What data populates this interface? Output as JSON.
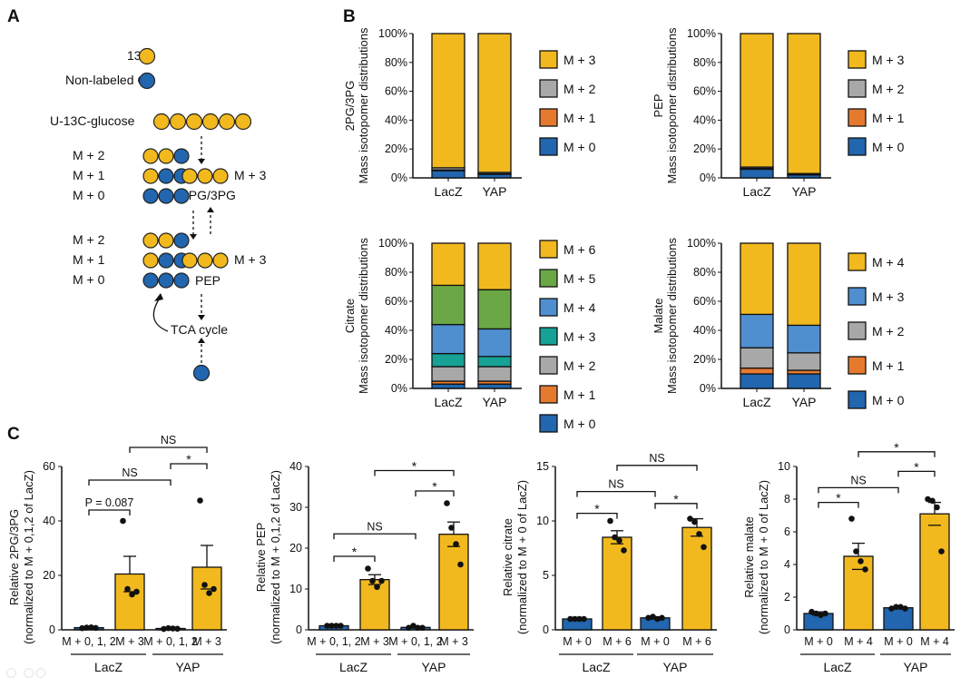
{
  "panels": {
    "a": "A",
    "b": "B",
    "c": "C"
  },
  "diagram": {
    "legend_13c": "13C",
    "legend_nonlabeled": "Non-labeled C",
    "glucose": "U-13C-glucose",
    "m2": "M + 2",
    "m1": "M + 1",
    "m0": "M + 0",
    "m3": "M + 3",
    "pg": "2PG/3PG",
    "pep": "PEP",
    "tca": "TCA cycle"
  },
  "colors": {
    "labeled": "#F2B91E",
    "unlabeled": "#2166AE",
    "M+0": "#2166AE",
    "M+1": "#E57A2F",
    "M+2": "#A8A8A8",
    "M+3": "#16A294",
    "M+4": "#4F8FD0",
    "M+5": "#6BA845",
    "M+6": "#F2B91E"
  },
  "chart_data": [
    {
      "type": "bar",
      "stacked": true,
      "title": "2PG/3PG",
      "ylabel": "Mass isotopomer distributions",
      "ylim": [
        0,
        100
      ],
      "yticks": [
        "0%",
        "20%",
        "40%",
        "60%",
        "80%",
        "100%"
      ],
      "categories": [
        "LacZ",
        "YAP"
      ],
      "series": [
        {
          "name": "M + 0",
          "key": "M+0",
          "values": [
            5,
            2.5
          ]
        },
        {
          "name": "M + 1",
          "key": "M+1",
          "values": [
            0.5,
            0.3
          ]
        },
        {
          "name": "M + 2",
          "key": "M+2",
          "values": [
            1.5,
            1
          ]
        },
        {
          "name": "M + 3",
          "key": "M+6",
          "values": [
            93,
            96.2
          ]
        }
      ]
    },
    {
      "type": "bar",
      "stacked": true,
      "title": "PEP",
      "ylabel": "Mass isotopomer distributions",
      "ylim": [
        0,
        100
      ],
      "yticks": [
        "0%",
        "20%",
        "40%",
        "60%",
        "80%",
        "100%"
      ],
      "categories": [
        "LacZ",
        "YAP"
      ],
      "series": [
        {
          "name": "M + 0",
          "key": "M+0",
          "values": [
            6,
            2
          ]
        },
        {
          "name": "M + 1",
          "key": "M+1",
          "values": [
            0.5,
            0.3
          ]
        },
        {
          "name": "M + 2",
          "key": "M+2",
          "values": [
            1,
            0.7
          ]
        },
        {
          "name": "M + 3",
          "key": "M+6",
          "values": [
            92.5,
            97
          ]
        }
      ]
    },
    {
      "type": "bar",
      "stacked": true,
      "title": "Citrate",
      "ylabel": "Mass isotopomer distributions",
      "ylim": [
        0,
        100
      ],
      "yticks": [
        "0%",
        "20%",
        "40%",
        "60%",
        "80%",
        "100%"
      ],
      "categories": [
        "LacZ",
        "YAP"
      ],
      "series": [
        {
          "name": "M + 0",
          "key": "M+0",
          "values": [
            3,
            3
          ]
        },
        {
          "name": "M + 1",
          "key": "M+1",
          "values": [
            2,
            2
          ]
        },
        {
          "name": "M + 2",
          "key": "M+2",
          "values": [
            10,
            10
          ]
        },
        {
          "name": "M + 3",
          "key": "M+3",
          "values": [
            9,
            7
          ]
        },
        {
          "name": "M + 4",
          "key": "M+4",
          "values": [
            20,
            19
          ]
        },
        {
          "name": "M + 5",
          "key": "M+5",
          "values": [
            27,
            27
          ]
        },
        {
          "name": "M + 6",
          "key": "M+6",
          "values": [
            29,
            32
          ]
        }
      ]
    },
    {
      "type": "bar",
      "stacked": true,
      "title": "Malate",
      "ylabel": "Mass isotopomer distributions",
      "ylim": [
        0,
        100
      ],
      "yticks": [
        "0%",
        "20%",
        "40%",
        "60%",
        "80%",
        "100%"
      ],
      "categories": [
        "LacZ",
        "YAP"
      ],
      "series": [
        {
          "name": "M + 0",
          "key": "M+0",
          "values": [
            10,
            10
          ]
        },
        {
          "name": "M + 1",
          "key": "M+1",
          "values": [
            4,
            2.5
          ]
        },
        {
          "name": "M + 2",
          "key": "M+2",
          "values": [
            14,
            12
          ]
        },
        {
          "name": "M + 3",
          "key": "M+4",
          "values": [
            23,
            19
          ]
        },
        {
          "name": "M + 4",
          "key": "M+6",
          "values": [
            49,
            56.5
          ]
        }
      ]
    },
    {
      "type": "bar",
      "ylabel": "Relative 2PG/3PG",
      "ylabel2": "(normalized to M + 0,1,2 of LacZ)",
      "ylim": [
        0,
        60
      ],
      "yticks": [
        "0",
        "20",
        "40",
        "60"
      ],
      "categories": [
        "M + 0, 1, 2",
        "M + 3",
        "M + 0, 1, 2",
        "M + 3"
      ],
      "groups": [
        "LacZ",
        "YAP"
      ],
      "values": [
        0.8,
        20.5,
        0.5,
        23
      ],
      "sem": [
        0.1,
        6.5,
        0.1,
        8
      ],
      "bar_keys": [
        "M+0",
        "M+6",
        "M+0",
        "M+6"
      ],
      "points": [
        [
          0.6,
          0.8,
          0.9,
          0.7
        ],
        [
          40,
          15,
          13,
          14
        ],
        [
          0.3,
          0.6,
          0.5,
          0.4
        ],
        [
          47.5,
          16.5,
          13.5,
          15
        ]
      ],
      "comparisons": [
        {
          "a": 0,
          "b": 1,
          "label": "P = 0.087",
          "y": 44
        },
        {
          "a": 0,
          "b": 2,
          "label": "NS",
          "y": 55
        },
        {
          "a": 2,
          "b": 3,
          "label": "*",
          "y": 61
        },
        {
          "a": 1,
          "b": 3,
          "label": "NS",
          "y": 67
        }
      ]
    },
    {
      "type": "bar",
      "ylabel": "Relative PEP",
      "ylabel2": "(normalized to M + 0,1,2 of LacZ)",
      "ylim": [
        0,
        40
      ],
      "yticks": [
        "0",
        "10",
        "20",
        "30",
        "40"
      ],
      "categories": [
        "M + 0, 1, 2",
        "M + 3",
        "M + 0, 1, 2",
        "M + 3"
      ],
      "groups": [
        "LacZ",
        "YAP"
      ],
      "values": [
        1,
        12.3,
        0.6,
        23.4
      ],
      "sem": [
        0.1,
        1.2,
        0.1,
        3
      ],
      "bar_keys": [
        "M+0",
        "M+6",
        "M+0",
        "M+6"
      ],
      "points": [
        [
          1,
          1,
          1,
          1
        ],
        [
          15,
          12,
          10.5,
          12
        ],
        [
          0.5,
          1,
          0.5,
          0.5
        ],
        [
          31,
          25,
          21,
          16
        ]
      ],
      "comparisons": [
        {
          "a": 0,
          "b": 1,
          "label": "*",
          "y": 18
        },
        {
          "a": 0,
          "b": 2,
          "label": "NS",
          "y": 23.5
        },
        {
          "a": 2,
          "b": 3,
          "label": "*",
          "y": 34
        },
        {
          "a": 1,
          "b": 3,
          "label": "*",
          "y": 39
        }
      ]
    },
    {
      "type": "bar",
      "ylabel": "Relative citrate",
      "ylabel2": "(normalized to M + 0 of LacZ)",
      "ylim": [
        0,
        15
      ],
      "yticks": [
        "0",
        "5",
        "10",
        "15"
      ],
      "categories": [
        "M + 0",
        "M + 6",
        "M + 0",
        "M + 6"
      ],
      "groups": [
        "LacZ",
        "YAP"
      ],
      "values": [
        1,
        8.5,
        1.1,
        9.4
      ],
      "sem": [
        0.05,
        0.6,
        0.1,
        0.8
      ],
      "bar_keys": [
        "M+0",
        "M+6",
        "M+0",
        "M+6"
      ],
      "points": [
        [
          1,
          1,
          1,
          1
        ],
        [
          10,
          8.5,
          8.2,
          7.3
        ],
        [
          1.1,
          1.2,
          1,
          1.1
        ],
        [
          10.2,
          9.9,
          8.8,
          7.6
        ]
      ],
      "comparisons": [
        {
          "a": 0,
          "b": 1,
          "label": "*",
          "y": 10.7
        },
        {
          "a": 0,
          "b": 2,
          "label": "NS",
          "y": 12.7
        },
        {
          "a": 2,
          "b": 3,
          "label": "*",
          "y": 11.6
        },
        {
          "a": 1,
          "b": 3,
          "label": "NS",
          "y": 15.1
        }
      ]
    },
    {
      "type": "bar",
      "ylabel": "Relative malate",
      "ylabel2": "(normalized to M + 0 of LacZ)",
      "ylim": [
        0,
        10
      ],
      "yticks": [
        "0",
        "2",
        "4",
        "6",
        "8",
        "10"
      ],
      "categories": [
        "M + 0",
        "M + 4",
        "M + 0",
        "M + 4"
      ],
      "groups": [
        "LacZ",
        "YAP"
      ],
      "values": [
        1,
        4.5,
        1.35,
        7.1
      ],
      "sem": [
        0.1,
        0.8,
        0.05,
        0.7
      ],
      "bar_keys": [
        "M+0",
        "M+6",
        "M+0",
        "M+6"
      ],
      "points": [
        [
          1.1,
          1,
          0.9,
          1
        ],
        [
          6.8,
          4.8,
          4.2,
          3.7
        ],
        [
          1.3,
          1.4,
          1.4,
          1.3
        ],
        [
          8,
          7.9,
          7.5,
          4.8
        ]
      ],
      "comparisons": [
        {
          "a": 0,
          "b": 1,
          "label": "*",
          "y": 7.8
        },
        {
          "a": 0,
          "b": 2,
          "label": "NS",
          "y": 8.7
        },
        {
          "a": 2,
          "b": 3,
          "label": "*",
          "y": 9.7
        },
        {
          "a": 1,
          "b": 3,
          "label": "*",
          "y": 10.9
        }
      ]
    }
  ]
}
